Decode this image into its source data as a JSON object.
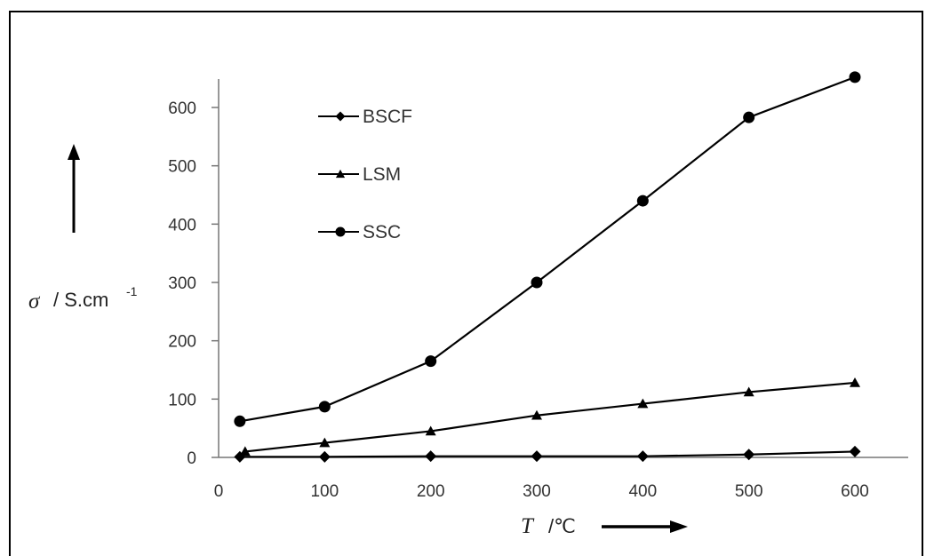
{
  "chart_data": {
    "type": "line",
    "x_symbol": "T",
    "x_unit": "/℃",
    "y_symbol": "σ",
    "y_unit": "/ S.cm",
    "y_unit_exp": "-1",
    "xlim": [
      0,
      650
    ],
    "ylim": [
      0,
      700
    ],
    "xticks": [
      0,
      100,
      200,
      300,
      400,
      500,
      600
    ],
    "yticks": [
      0,
      100,
      200,
      300,
      400,
      500,
      600
    ],
    "grid": false,
    "legend_position": "top-left",
    "series": [
      {
        "name": "BSCF",
        "marker": "diamond",
        "x": [
          20,
          100,
          200,
          300,
          400,
          500,
          600
        ],
        "y": [
          1,
          1,
          2,
          2,
          2,
          5,
          10
        ]
      },
      {
        "name": "LSM",
        "marker": "triangle",
        "x": [
          25,
          100,
          200,
          300,
          400,
          500,
          600
        ],
        "y": [
          10,
          25,
          45,
          72,
          92,
          112,
          128
        ]
      },
      {
        "name": "SSC",
        "marker": "circle",
        "x": [
          20,
          100,
          200,
          300,
          400,
          500,
          600
        ],
        "y": [
          62,
          87,
          165,
          300,
          440,
          583,
          652
        ]
      }
    ]
  }
}
